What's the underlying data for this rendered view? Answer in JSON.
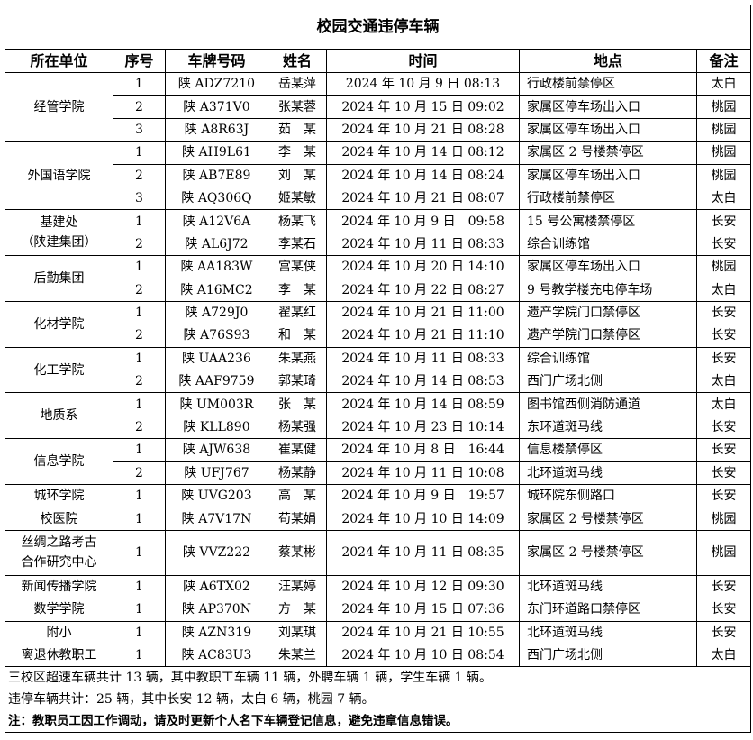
{
  "title": "校园交通违停车辆",
  "headers": [
    "所在单位",
    "序号",
    "车牌号码",
    "姓名",
    "时间",
    "地点",
    "备注"
  ],
  "groups": [
    {
      "unit": "经管学院",
      "rows": [
        [
          "1",
          "陕 ADZ7210",
          "岳某萍",
          "2024 年 10 月 9 日 08:13",
          "行政楼前禁停区",
          "太白"
        ],
        [
          "2",
          "陕 A371V0",
          "张某蓉",
          "2024 年 10 月 15 日 09:02",
          "家属区停车场出入口",
          "桃园"
        ],
        [
          "3",
          "陕 A8R63J",
          "茹　某",
          "2024 年 10 月 21 日 08:28",
          "家属区停车场出入口",
          "桃园"
        ]
      ]
    },
    {
      "unit": "外国语学院",
      "rows": [
        [
          "1",
          "陕 AH9L61",
          "李　某",
          "2024 年 10 月 14 日 08:12",
          "家属区 2 号楼禁停区",
          "桃园"
        ],
        [
          "2",
          "陕 AB7E89",
          "刘　某",
          "2024 年 10 月 14 日 08:24",
          "家属区停车场出入口",
          "桃园"
        ],
        [
          "3",
          "陕 AQ306Q",
          "姬某敏",
          "2024 年 10 月 21 日 08:07",
          "行政楼前禁停区",
          "太白"
        ]
      ]
    },
    {
      "unit": "基建处\n（陕建集团）",
      "rows": [
        [
          "1",
          "陕 A12V6A",
          "杨某飞",
          "2024 年 10 月 9 日　09:58",
          "15 号公寓楼禁停区",
          "长安"
        ],
        [
          "2",
          "陕 AL6J72",
          "李某石",
          "2024 年 10 月 11 日 08:33",
          "综合训练馆",
          "长安"
        ]
      ]
    },
    {
      "unit": "后勤集团",
      "rows": [
        [
          "1",
          "陕 AA183W",
          "宫某侠",
          "2024 年 10 月 20 日 14:10",
          "家属区停车场出入口",
          "桃园"
        ],
        [
          "2",
          "陕 A16MC2",
          "李　某",
          "2024 年 10 月 22 日 08:27",
          "9 号教学楼充电停车场",
          "太白"
        ]
      ]
    },
    {
      "unit": "化材学院",
      "rows": [
        [
          "1",
          "陕 A729J0",
          "翟某红",
          "2024 年 10 月 21 日 11:00",
          "遗产学院门口禁停区",
          "长安"
        ],
        [
          "2",
          "陕 A76S93",
          "和　某",
          "2024 年 10 月 21 日 11:10",
          "遗产学院门口禁停区",
          "长安"
        ]
      ]
    },
    {
      "unit": "化工学院",
      "rows": [
        [
          "1",
          "陕 UAA236",
          "朱某燕",
          "2024 年 10 月 11 日 08:33",
          "综合训练馆",
          "长安"
        ],
        [
          "2",
          "陕 AAF9759",
          "郭某琦",
          "2024 年 10 月 14 日 08:53",
          "西门广场北侧",
          "太白"
        ]
      ]
    },
    {
      "unit": "地质系",
      "rows": [
        [
          "1",
          "陕 UM003R",
          "张　某",
          "2024 年 10 月 14 日 08:59",
          "图书馆西侧消防通道",
          "太白"
        ],
        [
          "2",
          "陕 KLL890",
          "杨某强",
          "2024 年 10 月 23 日 10:14",
          "东环道斑马线",
          "长安"
        ]
      ]
    },
    {
      "unit": "信息学院",
      "rows": [
        [
          "1",
          "陕 AJW638",
          "崔某健",
          "2024 年 10 月 8 日　16:44",
          "信息楼禁停区",
          "长安"
        ],
        [
          "2",
          "陕 UFJ767",
          "杨某静",
          "2024 年 10 月 11 日 10:08",
          "北环道斑马线",
          "长安"
        ]
      ]
    },
    {
      "unit": "城环学院",
      "rows": [
        [
          "1",
          "陕 UVG203",
          "高　某",
          "2024 年 10 月 9 日　19:57",
          "城环院东侧路口",
          "长安"
        ]
      ]
    },
    {
      "unit": "校医院",
      "rows": [
        [
          "1",
          "陕 A7V17N",
          "苟某娟",
          "2024 年 10 月 10 日 14:09",
          "家属区 2 号楼禁停区",
          "桃园"
        ]
      ]
    },
    {
      "unit": "丝绸之路考古\n合作研究中心",
      "rows": [
        [
          "1",
          "陕 VVZ222",
          "蔡某彬",
          "2024 年 10 月 11 日 08:35",
          "家属区 2 号楼禁停区",
          "桃园"
        ]
      ]
    },
    {
      "unit": "新闻传播学院",
      "rows": [
        [
          "1",
          "陕 A6TX02",
          "汪某婷",
          "2024 年 10 月 12 日 09:30",
          "北环道斑马线",
          "长安"
        ]
      ]
    },
    {
      "unit": "数学学院",
      "rows": [
        [
          "1",
          "陕 AP370N",
          "方　某",
          "2024 年 10 月 15 日 07:36",
          "东门环道路口禁停区",
          "长安"
        ]
      ]
    },
    {
      "unit": "附小",
      "rows": [
        [
          "1",
          "陕 AZN319",
          "刘某琪",
          "2024 年 10 月 21 日 10:55",
          "北环道斑马线",
          "长安"
        ]
      ]
    },
    {
      "unit": "离退休教职工",
      "rows": [
        [
          "1",
          "陕 AC83U3",
          "朱某兰",
          "2024 年 10 月 10 日 08:54",
          "西门广场北侧",
          "太白"
        ]
      ]
    }
  ],
  "footer": {
    "line1": "三校区超速车辆共计 13 辆，其中教职工车辆 11 辆，外聘车辆 1 辆，学生车辆 1 辆。",
    "line2": "违停车辆共计：25 辆，其中长安 12 辆，太白 6 辆，桃园 7 辆。",
    "note": "注：教职员工因工作调动，请及时更新个人名下车辆登记信息，避免违章信息错误。"
  }
}
